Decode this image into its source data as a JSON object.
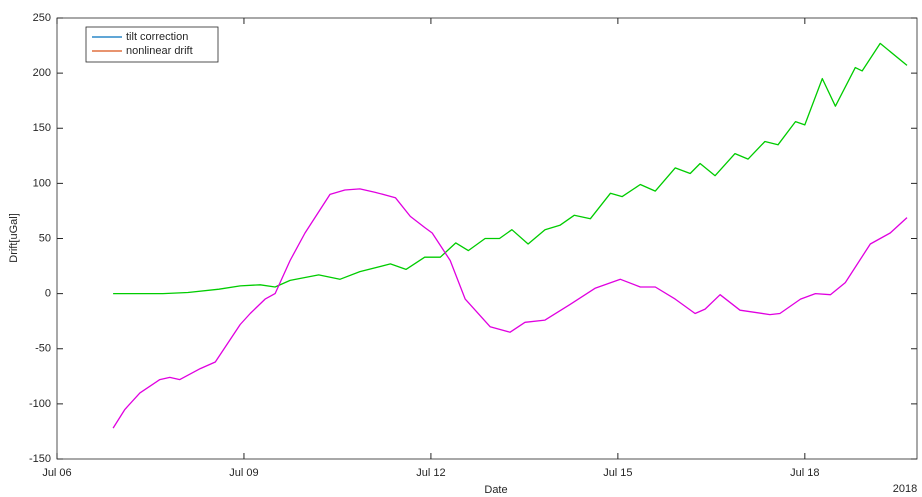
{
  "chart_data": {
    "type": "line",
    "x_label": "Date",
    "y_label": "Drift[uGal]",
    "x_secondary_label": "2018",
    "xlim": [
      0,
      13.8
    ],
    "xticks": [
      {
        "value": 0,
        "label": "Jul 06"
      },
      {
        "value": 3,
        "label": "Jul 09"
      },
      {
        "value": 6,
        "label": "Jul 12"
      },
      {
        "value": 9,
        "label": "Jul 15"
      },
      {
        "value": 12,
        "label": "Jul 18"
      }
    ],
    "ylim": [
      -150,
      250
    ],
    "yticks": [
      -150,
      -100,
      -50,
      0,
      50,
      100,
      150,
      200,
      250
    ],
    "legend_position": "upper-left",
    "series": [
      {
        "name": "tilt correction",
        "color": "#00cc00",
        "legend_color": "#0072bd",
        "x": [
          0.9,
          1.3,
          1.7,
          2.1,
          2.6,
          2.94,
          3.26,
          3.5,
          3.74,
          4.2,
          4.54,
          4.86,
          5.35,
          5.6,
          5.9,
          6.15,
          6.4,
          6.6,
          6.87,
          7.1,
          7.3,
          7.56,
          7.83,
          8.07,
          8.3,
          8.56,
          8.88,
          9.07,
          9.36,
          9.6,
          9.92,
          10.16,
          10.32,
          10.56,
          10.88,
          11.09,
          11.36,
          11.57,
          11.85,
          12.0,
          12.28,
          12.49,
          12.81,
          12.92,
          13.21,
          13.64
        ],
        "values": [
          0,
          0,
          0,
          1,
          4,
          7,
          8,
          6,
          12,
          17,
          13,
          20,
          27,
          22,
          33,
          33,
          46,
          39,
          50,
          50,
          58,
          45,
          58,
          62,
          71,
          68,
          91,
          88,
          99,
          93,
          114,
          109,
          118,
          107,
          127,
          122,
          138,
          135,
          156,
          153,
          195,
          170,
          205,
          202,
          227,
          207
        ]
      },
      {
        "name": "nonlinear drift",
        "color": "#e000e0",
        "legend_color": "#d95319",
        "x": [
          0.9,
          1.09,
          1.33,
          1.65,
          1.81,
          1.97,
          2.3,
          2.54,
          2.94,
          3.1,
          3.34,
          3.5,
          3.74,
          3.98,
          4.38,
          4.62,
          4.86,
          5.1,
          5.43,
          5.67,
          5.9,
          6.02,
          6.31,
          6.55,
          6.95,
          7.27,
          7.51,
          7.83,
          8.23,
          8.64,
          9.04,
          9.36,
          9.6,
          9.92,
          10.24,
          10.4,
          10.64,
          10.96,
          11.44,
          11.6,
          11.93,
          12.17,
          12.41,
          12.65,
          13.05,
          13.37,
          13.64
        ],
        "values": [
          -122,
          -105,
          -90,
          -78,
          -76,
          -78,
          -68,
          -62,
          -28,
          -18,
          -5,
          0,
          30,
          55,
          90,
          94,
          95,
          92,
          87,
          70,
          60,
          55,
          30,
          -5,
          -30,
          -35,
          -26,
          -24,
          -10,
          5,
          13,
          6,
          6,
          -5,
          -18,
          -14,
          -1,
          -15,
          -19,
          -18,
          -5,
          0,
          -1,
          10,
          45,
          55,
          69
        ]
      }
    ]
  }
}
